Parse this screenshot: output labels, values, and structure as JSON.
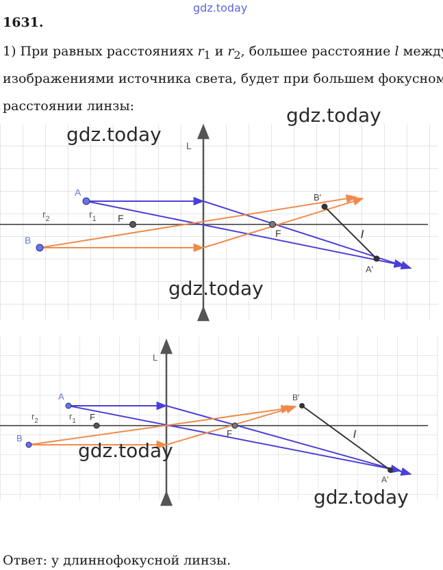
{
  "watermark": "gdz.today",
  "problem": {
    "number": "1631",
    "text_part1": "1) При равных расстояниях ",
    "r1": "r",
    "r1_sub": "1",
    "and": " и ",
    "r2": "r",
    "r2_sub": "2",
    "text_part2": ", большее расстояние ",
    "l": "l",
    "text_part3": " между",
    "line2": "изображениями источника света, будет при большем фокусном",
    "line3": "расстоянии линзы:"
  },
  "diagram_labels": {
    "lens": "L",
    "A": "A",
    "B": "B",
    "A_image": "A'",
    "B_image": "B'",
    "F": "F",
    "r1": "r",
    "r1_sub": "1",
    "r2": "r",
    "r2_sub": "2",
    "l": "l"
  },
  "colors": {
    "grid": "#c8c8c8",
    "axis": "#555555",
    "blue_ray": "#4a3fd6",
    "orange_ray": "#f08a4b",
    "point_fill": "#6a72e6",
    "dark_point": "#333333"
  },
  "answer": "Ответ:  у длиннофокусной линзы."
}
